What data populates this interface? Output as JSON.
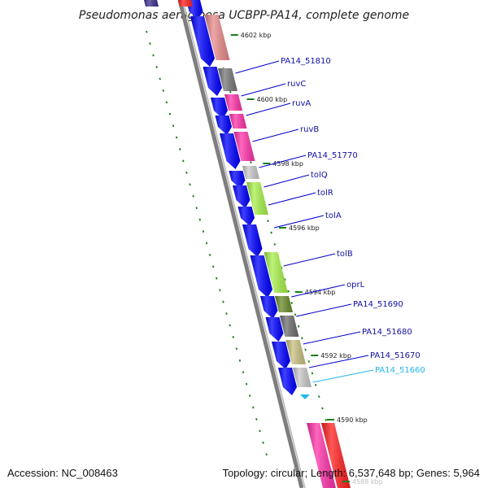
{
  "title": "Pseudomonas aeruginosa UCBPP-PA14, complete genome",
  "footer": {
    "accession": "Accession: NC_008463",
    "summary": "Topology: circular; Length: 6,537,648 bp; Genes: 5,964"
  },
  "colors": {
    "backbone": "#8c8c8c",
    "forward_cds": "#0000ff",
    "label_line": "#0000cc",
    "label_text": "#1010a0",
    "highlight": "#22b8e8",
    "tick_dots": "#1a7f1a"
  },
  "kbp_ticks": [
    {
      "label": "4602 kbp",
      "faded": false
    },
    {
      "label": "4600 kbp",
      "faded": false
    },
    {
      "label": "4598 kbp",
      "faded": false
    },
    {
      "label": "4596 kbp",
      "faded": false
    },
    {
      "label": "4594 kbp",
      "faded": false
    },
    {
      "label": "4592 kbp",
      "faded": false
    },
    {
      "label": "4590 kbp",
      "faded": false
    },
    {
      "label": "4588 kbp",
      "faded": true
    }
  ],
  "genes": [
    {
      "name": "PA14_51810",
      "color": "#b0b0b0",
      "highlight": false
    },
    {
      "name": "ruvC",
      "color": "#ff33aa",
      "highlight": false
    },
    {
      "name": "ruvA",
      "color": "#ff33aa",
      "highlight": false
    },
    {
      "name": "ruvB",
      "color": "#ff33aa",
      "highlight": false
    },
    {
      "name": "PA14_51770",
      "color": "#c8c8c8",
      "highlight": false
    },
    {
      "name": "tolQ",
      "color": "#a8f04a",
      "highlight": false
    },
    {
      "name": "tolR",
      "color": "#a8f04a",
      "highlight": false
    },
    {
      "name": "tolA",
      "color": "#ffffff",
      "highlight": false
    },
    {
      "name": "tolB",
      "color": "#a8f04a",
      "highlight": false
    },
    {
      "name": "oprL",
      "color": "#6a8a2a",
      "highlight": false
    },
    {
      "name": "PA14_51690",
      "color": "#6e6e6e",
      "highlight": false
    },
    {
      "name": "PA14_51680",
      "color": "#c8c080",
      "highlight": false
    },
    {
      "name": "PA14_51670",
      "color": "#c8c8c8",
      "highlight": false
    },
    {
      "name": "PA14_51660",
      "color": "#c8c8c8",
      "highlight": true
    }
  ]
}
